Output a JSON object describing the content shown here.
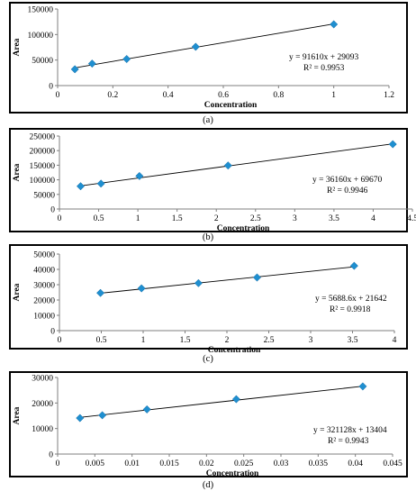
{
  "chart_data": [
    {
      "type": "scatter",
      "caption": "(a)",
      "xlabel": "Concentration",
      "ylabel": "Area",
      "xlim": [
        0,
        1.2
      ],
      "ylim": [
        0,
        150000
      ],
      "xticks": [
        "0",
        "0.2",
        "0.4",
        "0.6",
        "0.8",
        "1",
        "1.2"
      ],
      "yticks": [
        "0",
        "50000",
        "100000",
        "150000"
      ],
      "series": [
        {
          "x": [
            0.0625,
            0.125,
            0.25,
            0.5,
            1.0
          ],
          "y": [
            32000,
            43000,
            52000,
            76000,
            120000
          ],
          "trendline": {
            "slope": 91610,
            "intercept": 29093,
            "equation": "y = 91610x + 29093",
            "r2": "R² = 0.9953"
          }
        }
      ],
      "grid": false,
      "legend": "none",
      "marker_color": "#1f8fd0"
    },
    {
      "type": "scatter",
      "caption": "(b)",
      "xlabel": "Concentration",
      "ylabel": "Area",
      "xlim": [
        0,
        4.5
      ],
      "ylim": [
        0,
        250000
      ],
      "xticks": [
        "0",
        "0.5",
        "1",
        "1.5",
        "2",
        "2.5",
        "3",
        "3.5",
        "4",
        "4.5"
      ],
      "yticks": [
        "0",
        "50000",
        "100000",
        "150000",
        "200000",
        "250000"
      ],
      "series": [
        {
          "x": [
            0.27,
            0.53,
            1.02,
            2.15,
            4.25
          ],
          "y": [
            78000,
            87000,
            113000,
            149000,
            222000
          ],
          "trendline": {
            "slope": 36160,
            "intercept": 69670,
            "equation": "y = 36160x + 69670",
            "r2": "R² = 0.9946"
          }
        }
      ],
      "grid": false,
      "legend": "none",
      "marker_color": "#1f8fd0"
    },
    {
      "type": "scatter",
      "caption": "(c)",
      "xlabel": "Concentration",
      "ylabel": "Area",
      "xlim": [
        0,
        4
      ],
      "ylim": [
        0,
        50000
      ],
      "xticks": [
        "0",
        "0.5",
        "1",
        "1.5",
        "2",
        "2.5",
        "3",
        "3.5",
        "4"
      ],
      "yticks": [
        "0",
        "10000",
        "20000",
        "30000",
        "40000",
        "50000"
      ],
      "series": [
        {
          "x": [
            0.49,
            0.98,
            1.66,
            2.36,
            3.52
          ],
          "y": [
            24600,
            27600,
            31000,
            34700,
            42300
          ],
          "trendline": {
            "slope": 5688.6,
            "intercept": 21642,
            "equation": "y = 5688.6x + 21642",
            "r2": "R² = 0.9918"
          }
        }
      ],
      "grid": false,
      "legend": "none",
      "marker_color": "#1f8fd0"
    },
    {
      "type": "scatter",
      "caption": "(d)",
      "xlabel": "Concentration",
      "ylabel": "Area",
      "xlim": [
        0,
        0.045
      ],
      "ylim": [
        0,
        30000
      ],
      "xticks": [
        "0",
        "0.005",
        "0.01",
        "0.015",
        "0.02",
        "0.025",
        "0.03",
        "0.035",
        "0.04",
        "0.045"
      ],
      "yticks": [
        "0",
        "10000",
        "20000",
        "30000"
      ],
      "series": [
        {
          "x": [
            0.003,
            0.006,
            0.012,
            0.024,
            0.041
          ],
          "y": [
            14100,
            15200,
            17500,
            21500,
            26500
          ],
          "trendline": {
            "slope": 321128,
            "intercept": 13404,
            "equation": "y = 321128x + 13404",
            "r2": "R² = 0.9943"
          }
        }
      ],
      "grid": false,
      "legend": "none",
      "marker_color": "#1f8fd0"
    }
  ]
}
